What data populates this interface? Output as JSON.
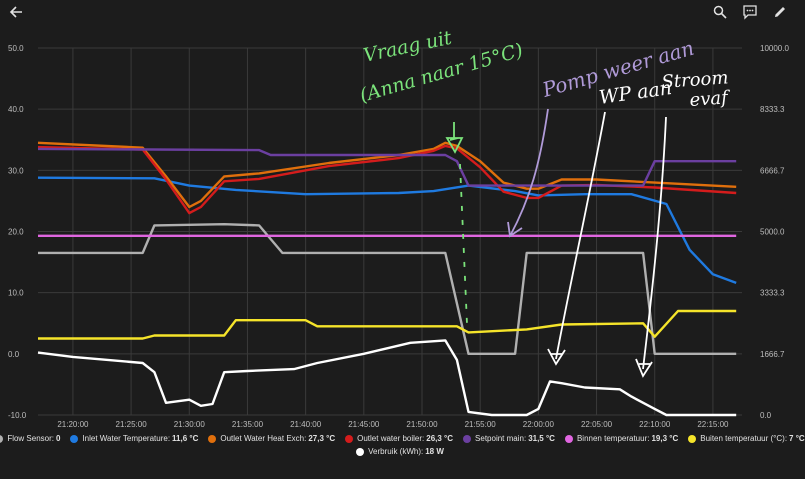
{
  "toolbar": {
    "back_icon": "arrow-left-icon",
    "search_icon": "search-icon",
    "comment_icon": "comment-icon",
    "edit_icon": "pencil-icon"
  },
  "colors": {
    "background": "#1c1c1c",
    "grid": "#3a3a3a",
    "tick_text": "#bdbdbd",
    "annotation_green": "#7be37b",
    "annotation_purple": "#b09ad8",
    "annotation_white": "#ffffff"
  },
  "annotations": [
    {
      "id": "vraag-uit-1",
      "text": "Vraag uit"
    },
    {
      "id": "vraag-uit-2",
      "text": "(Anna naar 15°C)"
    },
    {
      "id": "pomp",
      "text": "Pomp weer aan"
    },
    {
      "id": "wp",
      "text": "WP aan"
    },
    {
      "id": "stroom-1",
      "text": "Stroom"
    },
    {
      "id": "stroom-2",
      "text": "evaf"
    }
  ],
  "chart_data": {
    "type": "line",
    "x_ticks": [
      "21:20:00",
      "21:25:00",
      "21:30:00",
      "21:35:00",
      "21:40:00",
      "21:45:00",
      "21:50:00",
      "21:55:00",
      "22:00:00",
      "22:05:00",
      "22:10:00",
      "22:15:00"
    ],
    "x_range": [
      "21:17:00",
      "22:17:30"
    ],
    "y_left": {
      "ticks": [
        "50.0",
        "40.0",
        "30.0",
        "20.0",
        "10.0",
        "0.0",
        "-10.0"
      ],
      "range": [
        -10,
        50
      ]
    },
    "y_right": {
      "ticks": [
        "10000.0",
        "8333.3",
        "6666.7",
        "5000.0",
        "3333.3",
        "1666.7",
        "0.0"
      ],
      "range": [
        0,
        10000
      ]
    },
    "grid": true,
    "legend_position": "bottom",
    "series": [
      {
        "name": "Flow Sensor",
        "value": "0",
        "color": "#b0b0b0",
        "axis": "left",
        "points": [
          [
            "21:17",
            16.5
          ],
          [
            "21:26",
            16.5
          ],
          [
            "21:27",
            21
          ],
          [
            "21:33",
            21.2
          ],
          [
            "21:36",
            21
          ],
          [
            "21:38",
            16.5
          ],
          [
            "21:52",
            16.5
          ],
          [
            "21:54",
            0
          ],
          [
            "21:58",
            0
          ],
          [
            "21:59",
            16.5
          ],
          [
            "22:09",
            16.5
          ],
          [
            "22:10",
            0
          ],
          [
            "22:17",
            0
          ]
        ]
      },
      {
        "name": "Inlet Water Temperature",
        "value": "11,6 °C",
        "color": "#1f7ae0",
        "axis": "left",
        "points": [
          [
            "21:17",
            28.8
          ],
          [
            "21:27",
            28.7
          ],
          [
            "21:30",
            27.5
          ],
          [
            "21:34",
            26.8
          ],
          [
            "21:40",
            26.1
          ],
          [
            "21:48",
            26.3
          ],
          [
            "21:51",
            26.6
          ],
          [
            "21:54",
            27.5
          ],
          [
            "21:58",
            26.6
          ],
          [
            "22:00",
            25.9
          ],
          [
            "22:04",
            26.1
          ],
          [
            "22:08",
            26.1
          ],
          [
            "22:11",
            24.5
          ],
          [
            "22:13",
            17
          ],
          [
            "22:15",
            13
          ],
          [
            "22:17",
            11.6
          ]
        ]
      },
      {
        "name": "Outlet Water Heat Exch",
        "value": "27,3 °C",
        "color": "#e06f0c",
        "axis": "left",
        "points": [
          [
            "21:17",
            34.5
          ],
          [
            "21:26",
            33.7
          ],
          [
            "21:28",
            29
          ],
          [
            "21:30",
            24
          ],
          [
            "21:31",
            25
          ],
          [
            "21:33",
            29
          ],
          [
            "21:36",
            29.5
          ],
          [
            "21:42",
            31.2
          ],
          [
            "21:48",
            32.5
          ],
          [
            "21:51",
            33.5
          ],
          [
            "21:52",
            34.5
          ],
          [
            "21:53",
            34
          ],
          [
            "21:55",
            31.5
          ],
          [
            "21:57",
            28
          ],
          [
            "21:59",
            27
          ],
          [
            "22:00",
            27
          ],
          [
            "22:02",
            28.5
          ],
          [
            "22:05",
            28.5
          ],
          [
            "22:10",
            28
          ],
          [
            "22:17",
            27.3
          ]
        ]
      },
      {
        "name": "Outlet water boiler",
        "value": "26,3 °C",
        "color": "#d41c1c",
        "axis": "left",
        "points": [
          [
            "21:17",
            33.8
          ],
          [
            "21:26",
            33.4
          ],
          [
            "21:28",
            28.5
          ],
          [
            "21:30",
            23
          ],
          [
            "21:31",
            24
          ],
          [
            "21:33",
            28.2
          ],
          [
            "21:36",
            28.6
          ],
          [
            "21:42",
            30.7
          ],
          [
            "21:48",
            32
          ],
          [
            "21:51",
            33.2
          ],
          [
            "21:52",
            34
          ],
          [
            "21:53",
            33.6
          ],
          [
            "21:55",
            30.5
          ],
          [
            "21:57",
            26.5
          ],
          [
            "21:59",
            25.5
          ],
          [
            "22:00",
            25.5
          ],
          [
            "22:02",
            27.5
          ],
          [
            "22:05",
            27.6
          ],
          [
            "22:10",
            27.2
          ],
          [
            "22:17",
            26.3
          ]
        ]
      },
      {
        "name": "Setpoint main",
        "value": "31,5 °C",
        "color": "#6b3fa0",
        "axis": "left",
        "points": [
          [
            "21:17",
            33.5
          ],
          [
            "21:36",
            33.3
          ],
          [
            "21:37",
            32.5
          ],
          [
            "21:52",
            32.5
          ],
          [
            "21:53",
            31.5
          ],
          [
            "21:54",
            27.5
          ],
          [
            "22:09",
            27.5
          ],
          [
            "22:10",
            31.5
          ],
          [
            "22:17",
            31.5
          ]
        ]
      },
      {
        "name": "Binnen temperatuur",
        "value": "19,3 °C",
        "color": "#e066e0",
        "axis": "left",
        "points": [
          [
            "21:17",
            19.3
          ],
          [
            "22:17",
            19.3
          ]
        ]
      },
      {
        "name": "Buiten temperatuur (°C)",
        "value": "7 °C",
        "color": "#f5e42a",
        "axis": "left",
        "points": [
          [
            "21:17",
            2.5
          ],
          [
            "21:26",
            2.5
          ],
          [
            "21:27",
            3
          ],
          [
            "21:33",
            3
          ],
          [
            "21:34",
            5.5
          ],
          [
            "21:40",
            5.5
          ],
          [
            "21:41",
            4.5
          ],
          [
            "21:53",
            4.5
          ],
          [
            "21:54",
            3.5
          ],
          [
            "21:59",
            4
          ],
          [
            "22:02",
            4.8
          ],
          [
            "22:09",
            5
          ],
          [
            "22:10",
            2.8
          ],
          [
            "22:12",
            7
          ],
          [
            "22:17",
            7
          ]
        ]
      },
      {
        "name": "Verbruik (kWh)",
        "value": "18 W",
        "color": "#ffffff",
        "axis": "left",
        "points": [
          [
            "21:17",
            0.2
          ],
          [
            "21:20",
            -0.5
          ],
          [
            "21:26",
            -1.5
          ],
          [
            "21:27",
            -3
          ],
          [
            "21:28",
            -8
          ],
          [
            "21:30",
            -7.5
          ],
          [
            "21:31",
            -8.5
          ],
          [
            "21:32",
            -8.2
          ],
          [
            "21:33",
            -3
          ],
          [
            "21:35",
            -2.8
          ],
          [
            "21:39",
            -2.5
          ],
          [
            "21:41",
            -1.5
          ],
          [
            "21:45",
            0
          ],
          [
            "21:49",
            1.8
          ],
          [
            "21:52",
            2.2
          ],
          [
            "21:53",
            -1
          ],
          [
            "21:54",
            -9.5
          ],
          [
            "21:56",
            -10
          ],
          [
            "21:59",
            -10
          ],
          [
            "22:00",
            -9
          ],
          [
            "22:01",
            -4.5
          ],
          [
            "22:02",
            -4.8
          ],
          [
            "22:04",
            -5.5
          ],
          [
            "22:07",
            -5.8
          ],
          [
            "22:08",
            -7
          ],
          [
            "22:10",
            -9
          ],
          [
            "22:11",
            -10
          ],
          [
            "22:17",
            -10
          ]
        ]
      }
    ]
  }
}
